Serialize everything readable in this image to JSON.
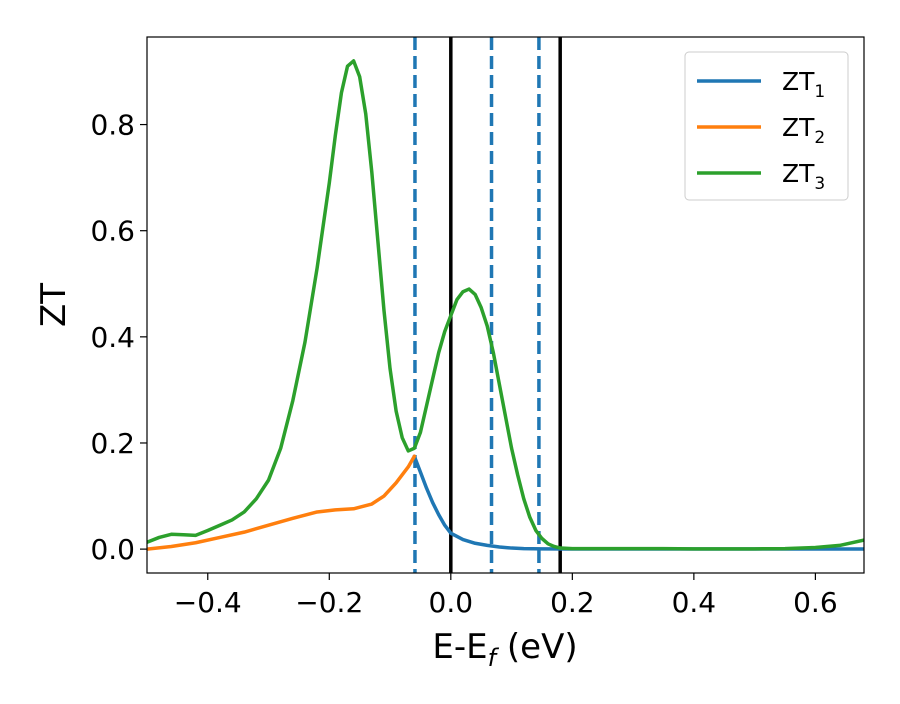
{
  "chart_data": {
    "type": "line",
    "xlabel": "E-E",
    "xlabel_sub": "f",
    "xlabel_unit": " (eV)",
    "ylabel": "ZT",
    "xlim": [
      -0.5,
      0.68
    ],
    "ylim": [
      -0.045,
      0.965
    ],
    "x_ticks": [
      -0.4,
      -0.2,
      0.0,
      0.2,
      0.4,
      0.6
    ],
    "x_tick_labels": [
      "−0.4",
      "−0.2",
      "0.0",
      "0.2",
      "0.4",
      "0.6"
    ],
    "y_ticks": [
      0.0,
      0.2,
      0.4,
      0.6,
      0.8
    ],
    "y_tick_labels": [
      "0.0",
      "0.2",
      "0.4",
      "0.6",
      "0.8"
    ],
    "grid": false,
    "legend_position": "top-right",
    "series": [
      {
        "name": "ZT",
        "name_sub": "1",
        "color": "#1f77b4",
        "x": [
          -0.06,
          -0.05,
          -0.04,
          -0.03,
          -0.02,
          -0.01,
          0.0,
          0.02,
          0.04,
          0.06,
          0.08,
          0.1,
          0.12,
          0.15,
          0.2,
          0.3,
          0.4,
          0.5,
          0.6,
          0.68
        ],
        "y": [
          0.175,
          0.145,
          0.115,
          0.088,
          0.065,
          0.045,
          0.03,
          0.018,
          0.011,
          0.007,
          0.004,
          0.002,
          0.001,
          0.0005,
          0.0003,
          0.0002,
          0.0002,
          0.0002,
          0.0002,
          0.0002
        ]
      },
      {
        "name": "ZT",
        "name_sub": "2",
        "color": "#ff7f0e",
        "x": [
          -0.5,
          -0.46,
          -0.42,
          -0.38,
          -0.34,
          -0.3,
          -0.26,
          -0.22,
          -0.19,
          -0.16,
          -0.13,
          -0.11,
          -0.09,
          -0.07,
          -0.06
        ],
        "y": [
          0.0,
          0.005,
          0.012,
          0.022,
          0.032,
          0.045,
          0.058,
          0.07,
          0.074,
          0.076,
          0.085,
          0.1,
          0.125,
          0.155,
          0.175
        ]
      },
      {
        "name": "ZT",
        "name_sub": "3",
        "color": "#2ca02c",
        "x": [
          -0.5,
          -0.48,
          -0.46,
          -0.44,
          -0.42,
          -0.4,
          -0.38,
          -0.36,
          -0.34,
          -0.32,
          -0.3,
          -0.28,
          -0.26,
          -0.24,
          -0.22,
          -0.2,
          -0.19,
          -0.18,
          -0.17,
          -0.16,
          -0.15,
          -0.14,
          -0.13,
          -0.12,
          -0.11,
          -0.1,
          -0.09,
          -0.08,
          -0.07,
          -0.06,
          -0.05,
          -0.04,
          -0.03,
          -0.02,
          -0.01,
          0.0,
          0.01,
          0.02,
          0.03,
          0.04,
          0.05,
          0.06,
          0.07,
          0.08,
          0.09,
          0.1,
          0.11,
          0.12,
          0.13,
          0.14,
          0.15,
          0.16,
          0.17,
          0.18,
          0.2,
          0.25,
          0.3,
          0.35,
          0.4,
          0.45,
          0.5,
          0.55,
          0.6,
          0.64,
          0.68
        ],
        "y": [
          0.013,
          0.022,
          0.028,
          0.027,
          0.026,
          0.035,
          0.045,
          0.055,
          0.07,
          0.095,
          0.13,
          0.19,
          0.28,
          0.39,
          0.53,
          0.69,
          0.78,
          0.86,
          0.91,
          0.92,
          0.89,
          0.82,
          0.71,
          0.58,
          0.45,
          0.34,
          0.26,
          0.21,
          0.185,
          0.19,
          0.22,
          0.27,
          0.32,
          0.37,
          0.41,
          0.44,
          0.47,
          0.485,
          0.49,
          0.48,
          0.455,
          0.42,
          0.37,
          0.31,
          0.25,
          0.19,
          0.14,
          0.095,
          0.06,
          0.035,
          0.02,
          0.01,
          0.005,
          0.002,
          0.001,
          0.001,
          0.001,
          0.001,
          0.0005,
          0.0005,
          0.0005,
          0.001,
          0.003,
          0.007,
          0.017
        ]
      }
    ],
    "vlines": [
      {
        "x": -0.059,
        "style": "dashed",
        "color": "#1f77b4"
      },
      {
        "x": 0.0,
        "style": "solid",
        "color": "#000000"
      },
      {
        "x": 0.067,
        "style": "dashed",
        "color": "#1f77b4"
      },
      {
        "x": 0.145,
        "style": "dashed",
        "color": "#1f77b4"
      },
      {
        "x": 0.18,
        "style": "solid",
        "color": "#000000"
      }
    ]
  }
}
